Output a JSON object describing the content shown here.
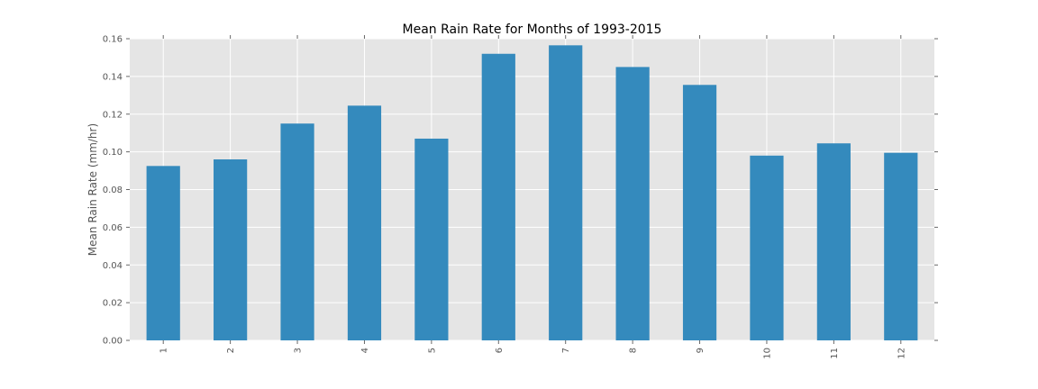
{
  "chart_data": {
    "type": "bar",
    "title": "Mean Rain Rate for Months of 1993-2015",
    "xlabel": "",
    "ylabel": "Mean Rain Rate (mm/hr)",
    "categories": [
      "1",
      "2",
      "3",
      "4",
      "5",
      "6",
      "7",
      "8",
      "9",
      "10",
      "11",
      "12"
    ],
    "values": [
      0.0925,
      0.096,
      0.115,
      0.1245,
      0.107,
      0.152,
      0.1565,
      0.145,
      0.1355,
      0.098,
      0.1045,
      0.0995
    ],
    "ylim": [
      0,
      0.16
    ],
    "yticks": [
      "0.00",
      "0.02",
      "0.04",
      "0.06",
      "0.08",
      "0.10",
      "0.12",
      "0.14",
      "0.16"
    ],
    "grid": true,
    "legend": "none",
    "colors": {
      "bar": "#348abd",
      "plot_background": "#e5e5e5",
      "grid": "#ffffff"
    }
  }
}
